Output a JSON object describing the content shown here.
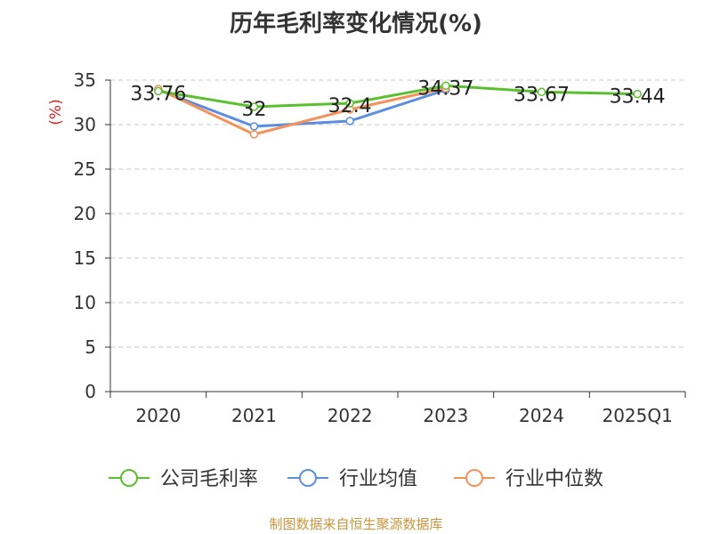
{
  "chart_data": {
    "type": "line",
    "title": "历年毛利率变化情况(%)",
    "ylabel": "(%)",
    "categories": [
      "2020",
      "2021",
      "2022",
      "2023",
      "2024",
      "2025Q1"
    ],
    "ylim": [
      0,
      35
    ],
    "yticks": [
      0,
      5,
      10,
      15,
      20,
      25,
      30,
      35
    ],
    "grid": true,
    "legend_position": "bottom",
    "series": [
      {
        "name": "公司毛利率",
        "color": "#5ac02f",
        "values": [
          33.76,
          32,
          32.4,
          34.37,
          33.67,
          33.44
        ],
        "labels": [
          "33.76",
          "32",
          "32.4",
          "34.37",
          "33.67",
          "33.44"
        ]
      },
      {
        "name": "行业均值",
        "color": "#5b8de0",
        "values": [
          33.9,
          29.8,
          30.4,
          33.9,
          null,
          null
        ]
      },
      {
        "name": "行业中位数",
        "color": "#f4925c",
        "values": [
          34.0,
          28.9,
          31.7,
          34.1,
          null,
          null
        ]
      }
    ]
  },
  "footer": "制图数据来自恒生聚源数据库"
}
